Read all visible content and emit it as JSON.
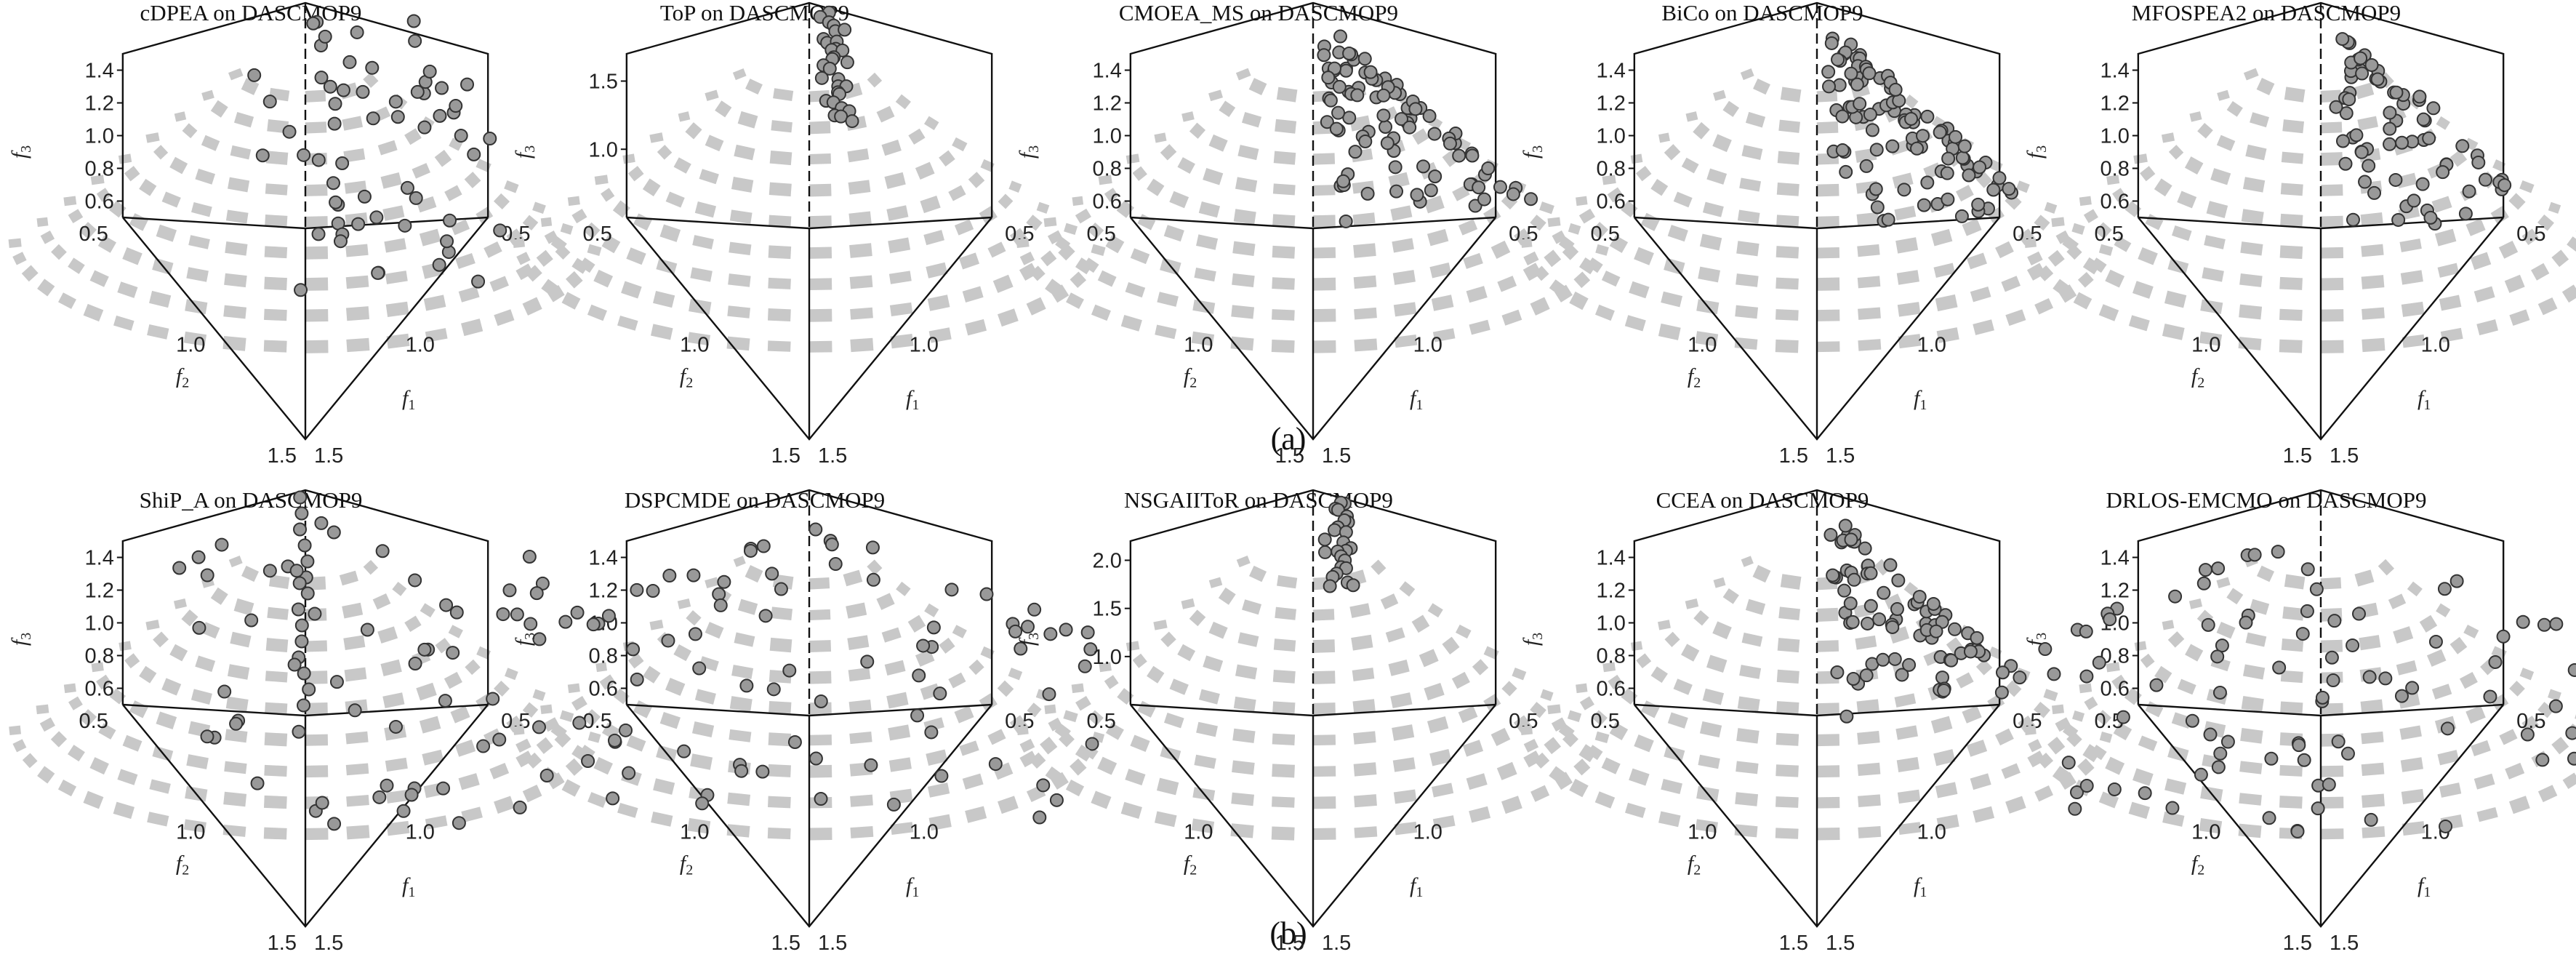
{
  "captions": [
    "(a)",
    "(b)"
  ],
  "chart_data": [
    {
      "type": "scatter",
      "title": "cDPEA on DASCMOP9",
      "front": "spherical",
      "xlabel": "f1",
      "ylabel": "f2",
      "zlabel": "f3",
      "xticks": [
        "0.5",
        "1.0",
        "1.5"
      ],
      "yticks": [
        "0.5",
        "1.0",
        "1.5"
      ],
      "zticks": [
        "0.6",
        "0.8",
        "1.0",
        "1.2",
        "1.4"
      ],
      "zlim": [
        0.5,
        1.5
      ],
      "distribution": "scattered",
      "points": 60
    },
    {
      "type": "scatter",
      "title": "ToP on DASCMOP9",
      "front": "spherical",
      "xlabel": "f1",
      "ylabel": "f2",
      "zlabel": "f3",
      "xticks": [
        "0.5",
        "1.0",
        "1.5"
      ],
      "yticks": [
        "0.5",
        "1.0",
        "1.5"
      ],
      "zticks": [
        "1.0",
        "1.5"
      ],
      "zlim": [
        0.5,
        1.7
      ],
      "distribution": "top-cluster",
      "points": 30
    },
    {
      "type": "scatter",
      "title": "CMOEA_MS on DASCMOP9",
      "front": "spherical",
      "xlabel": "f1",
      "ylabel": "f2",
      "zlabel": "f3",
      "xticks": [
        "0.5",
        "1.0",
        "1.5"
      ],
      "yticks": [
        "0.5",
        "1.0",
        "1.5"
      ],
      "zticks": [
        "0.6",
        "0.8",
        "1.0",
        "1.2",
        "1.4"
      ],
      "zlim": [
        0.5,
        1.5
      ],
      "distribution": "right-band",
      "points": 90
    },
    {
      "type": "scatter",
      "title": "BiCo on DASCMOP9",
      "front": "spherical",
      "xlabel": "f1",
      "ylabel": "f2",
      "zlabel": "f3",
      "xticks": [
        "0.5",
        "1.0",
        "1.5"
      ],
      "yticks": [
        "0.5",
        "1.0",
        "1.5"
      ],
      "zticks": [
        "0.6",
        "0.8",
        "1.0",
        "1.2",
        "1.4"
      ],
      "zlim": [
        0.5,
        1.5
      ],
      "distribution": "right-band",
      "points": 100
    },
    {
      "type": "scatter",
      "title": "MFOSPEA2 on DASCMOP9",
      "front": "spherical",
      "xlabel": "f1",
      "ylabel": "f2",
      "zlabel": "f3",
      "xticks": [
        "0.5",
        "1.0",
        "1.5"
      ],
      "yticks": [
        "0.5",
        "1.0",
        "1.5"
      ],
      "zticks": [
        "0.6",
        "0.8",
        "1.0",
        "1.2",
        "1.4"
      ],
      "zlim": [
        0.5,
        1.5
      ],
      "distribution": "right-clusters",
      "points": 70
    },
    {
      "type": "scatter",
      "title": "ShiP_A on DASCMOP9",
      "front": "spherical",
      "xlabel": "f1",
      "ylabel": "f2",
      "zlabel": "f3",
      "xticks": [
        "0.5",
        "1.0",
        "1.5"
      ],
      "yticks": [
        "0.5",
        "1.0",
        "1.5"
      ],
      "zticks": [
        "0.6",
        "0.8",
        "1.0",
        "1.2",
        "1.4"
      ],
      "zlim": [
        0.5,
        1.5
      ],
      "distribution": "scattered-center",
      "points": 70
    },
    {
      "type": "scatter",
      "title": "DSPCMDE on DASCMOP9",
      "front": "spherical",
      "xlabel": "f1",
      "ylabel": "f2",
      "zlabel": "f3",
      "xticks": [
        "0.5",
        "1.0",
        "1.5"
      ],
      "yticks": [
        "0.5",
        "1.0",
        "1.5"
      ],
      "zticks": [
        "0.6",
        "0.8",
        "1.0",
        "1.2",
        "1.4"
      ],
      "zlim": [
        0.5,
        1.5
      ],
      "distribution": "uniform",
      "points": 80
    },
    {
      "type": "scatter",
      "title": "NSGAIIToR on DASCMOP9",
      "front": "spherical",
      "xlabel": "f1",
      "ylabel": "f2",
      "zlabel": "f3",
      "xticks": [
        "0.5",
        "1.0",
        "1.5"
      ],
      "yticks": [
        "0.5",
        "1.0",
        "1.5"
      ],
      "zticks": [
        "1.0",
        "1.5",
        "2.0"
      ],
      "zlim": [
        0.5,
        2.2
      ],
      "distribution": "top-cluster",
      "points": 25
    },
    {
      "type": "scatter",
      "title": "CCEA on DASCMOP9",
      "front": "spherical",
      "xlabel": "f1",
      "ylabel": "f2",
      "zlabel": "f3",
      "xticks": [
        "0.5",
        "1.0",
        "1.5"
      ],
      "yticks": [
        "0.5",
        "1.0",
        "1.5"
      ],
      "zticks": [
        "0.6",
        "0.8",
        "1.0",
        "1.2",
        "1.4"
      ],
      "zlim": [
        0.5,
        1.5
      ],
      "distribution": "right-band",
      "points": 80
    },
    {
      "type": "scatter",
      "title": "DRLOS-EMCMO on DASCMOP9",
      "front": "spherical",
      "xlabel": "f1",
      "ylabel": "f2",
      "zlabel": "f3",
      "xticks": [
        "0.5",
        "1.0",
        "1.5"
      ],
      "yticks": [
        "0.5",
        "1.0",
        "1.5"
      ],
      "zticks": [
        "0.6",
        "0.8",
        "1.0",
        "1.2",
        "1.4"
      ],
      "zlim": [
        0.5,
        1.5
      ],
      "distribution": "uniform",
      "points": 90
    }
  ]
}
